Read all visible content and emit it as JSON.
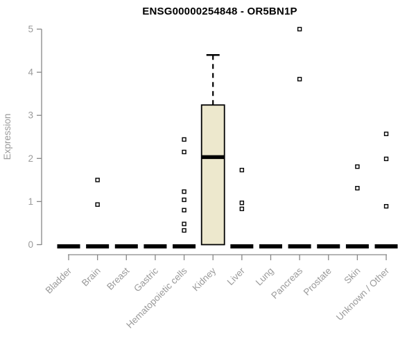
{
  "chart_data": {
    "type": "boxplot",
    "title": "ENSG00000254848 - OR5BN1P",
    "xlabel": "",
    "ylabel": "Expression",
    "ylim": [
      0,
      5
    ],
    "yticks": [
      0,
      1,
      2,
      3,
      4,
      5
    ],
    "grid": false,
    "legend": false,
    "colors": {
      "box_fill": "#EDE8CD",
      "box_border": "#000000",
      "axis_line": "#878787",
      "axis_text": "#9A9A9A",
      "title_text": "#000000",
      "outlier_fill": "#FFFFFF"
    },
    "categories": [
      "Bladder",
      "Brain",
      "Breast",
      "Gastric",
      "Hematopoietic cells",
      "Kidney",
      "Liver",
      "Lung",
      "Pancreas",
      "Prostate",
      "Skin",
      "Unknown / Other"
    ],
    "boxes": [
      {
        "category": "Bladder",
        "low": 0,
        "q1": 0,
        "median": 0,
        "q3": 0,
        "high": 0,
        "outliers": []
      },
      {
        "category": "Brain",
        "low": 0,
        "q1": 0,
        "median": 0,
        "q3": 0,
        "high": 0,
        "outliers": [
          1.5,
          0.93
        ]
      },
      {
        "category": "Breast",
        "low": 0,
        "q1": 0,
        "median": 0,
        "q3": 0,
        "high": 0,
        "outliers": []
      },
      {
        "category": "Gastric",
        "low": 0,
        "q1": 0,
        "median": 0,
        "q3": 0,
        "high": 0,
        "outliers": []
      },
      {
        "category": "Hematopoietic cells",
        "low": 0,
        "q1": 0,
        "median": 0,
        "q3": 0,
        "high": 0,
        "outliers": [
          2.44,
          2.15,
          1.23,
          1.04,
          0.8,
          0.48,
          0.33
        ]
      },
      {
        "category": "Kidney",
        "low": 0,
        "q1": 0,
        "median": 2.03,
        "q3": 3.24,
        "high": 4.4,
        "outliers": []
      },
      {
        "category": "Liver",
        "low": 0,
        "q1": 0,
        "median": 0,
        "q3": 0,
        "high": 0,
        "outliers": [
          1.73,
          0.97,
          0.83
        ]
      },
      {
        "category": "Lung",
        "low": 0,
        "q1": 0,
        "median": 0,
        "q3": 0,
        "high": 0,
        "outliers": []
      },
      {
        "category": "Pancreas",
        "low": 0,
        "q1": 0,
        "median": 0,
        "q3": 0,
        "high": 0,
        "outliers": [
          5.0,
          3.84
        ]
      },
      {
        "category": "Prostate",
        "low": 0,
        "q1": 0,
        "median": 0,
        "q3": 0,
        "high": 0,
        "outliers": []
      },
      {
        "category": "Skin",
        "low": 0,
        "q1": 0,
        "median": 0,
        "q3": 0,
        "high": 0,
        "outliers": [
          1.81,
          1.31
        ]
      },
      {
        "category": "Unknown / Other",
        "low": 0,
        "q1": 0,
        "median": 0,
        "q3": 0,
        "high": 0,
        "outliers": [
          2.57,
          1.99,
          0.89
        ]
      }
    ]
  }
}
